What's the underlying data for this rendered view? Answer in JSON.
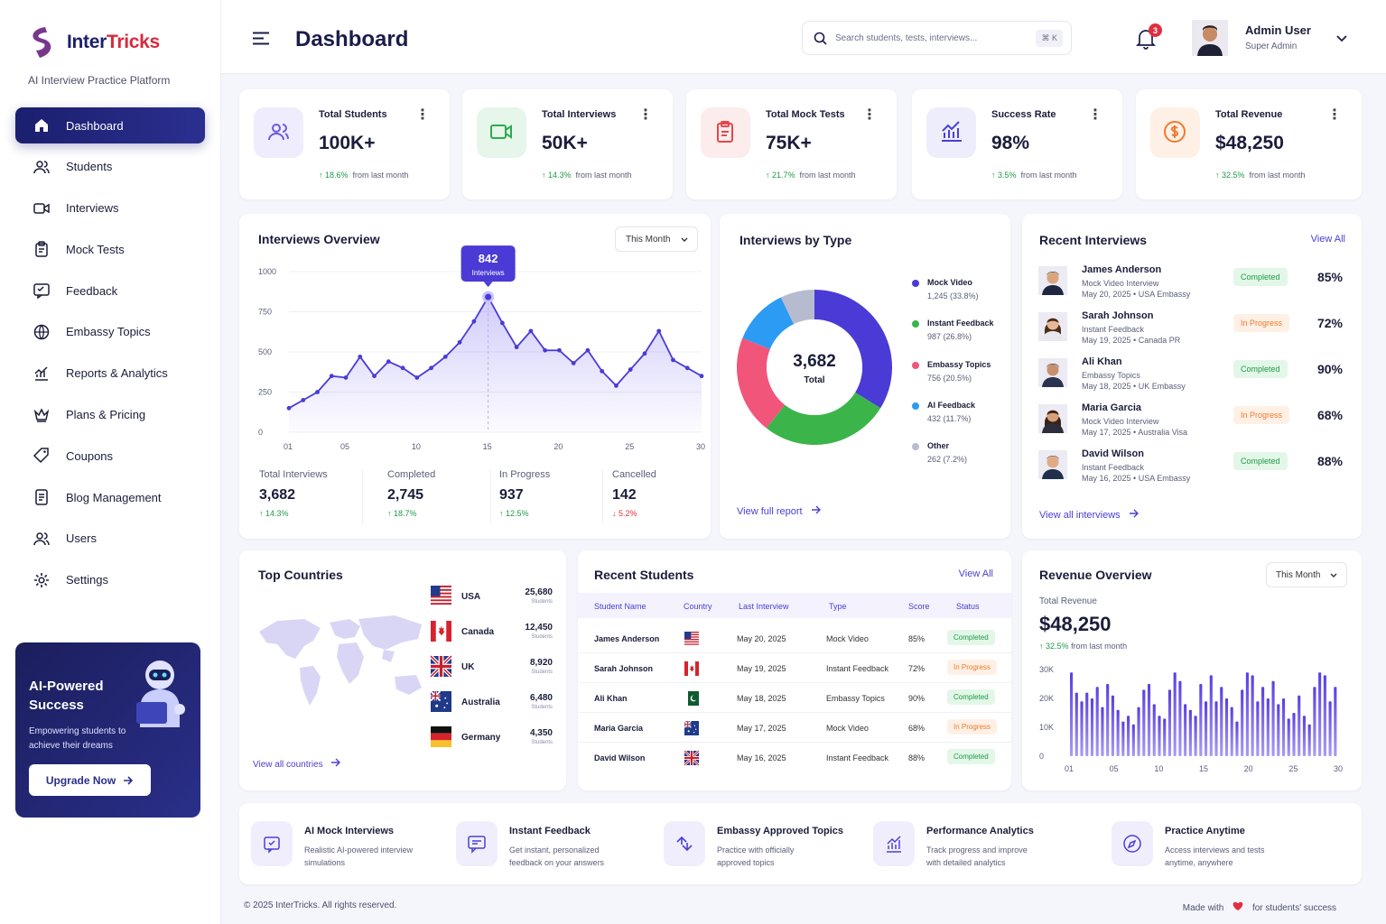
{
  "brand": {
    "name_a": "Inter",
    "name_b": "Tricks",
    "tagline": "AI Interview Practice Platform"
  },
  "nav": [
    {
      "label": "Dashboard",
      "icon": "home-icon"
    },
    {
      "label": "Students",
      "icon": "users-icon"
    },
    {
      "label": "Interviews",
      "icon": "video-icon"
    },
    {
      "label": "Mock Tests",
      "icon": "clipboard-icon"
    },
    {
      "label": "Feedback",
      "icon": "feedback-icon"
    },
    {
      "label": "Embassy Topics",
      "icon": "globe-icon"
    },
    {
      "label": "Reports & Analytics",
      "icon": "chart-icon"
    },
    {
      "label": "Plans & Pricing",
      "icon": "crown-icon"
    },
    {
      "label": "Coupons",
      "icon": "tag-icon"
    },
    {
      "label": "Blog Management",
      "icon": "document-icon"
    },
    {
      "label": "Users",
      "icon": "user-group-icon"
    },
    {
      "label": "Settings",
      "icon": "gear-icon"
    }
  ],
  "promo": {
    "title": "AI-Powered Success",
    "text": "Empowering students to achieve their dreams",
    "button": "Upgrade Now"
  },
  "header": {
    "title": "Dashboard",
    "search_placeholder": "Search students, tests, interviews...",
    "shortcut": "⌘ K",
    "notifications": "3",
    "user_name": "Admin User",
    "user_role": "Super Admin"
  },
  "stats": [
    {
      "label": "Total Students",
      "value": "100K+",
      "change": "18.6%",
      "suffix": "from last month",
      "color": "#6a5ae0",
      "bg": "#efedfd"
    },
    {
      "label": "Total Interviews",
      "value": "50K+",
      "change": "14.3%",
      "suffix": "from last month",
      "color": "#2eaa52",
      "bg": "#e6f6ea"
    },
    {
      "label": "Total Mock Tests",
      "value": "75K+",
      "change": "21.7%",
      "suffix": "from last month",
      "color": "#e5484d",
      "bg": "#fdecec"
    },
    {
      "label": "Success Rate",
      "value": "98%",
      "change": "3.5%",
      "suffix": "from last month",
      "color": "#4a40d4",
      "bg": "#eeedfc"
    },
    {
      "label": "Total Revenue",
      "value": "$48,250",
      "change": "32.5%",
      "suffix": "from last month",
      "color": "#f07a2e",
      "bg": "#fff0e6"
    }
  ],
  "overview": {
    "title": "Interviews Overview",
    "period": "This Month",
    "tooltip_value": "842",
    "tooltip_label": "Interviews",
    "summary": [
      {
        "label": "Total Interviews",
        "value": "3,682",
        "change": "14.3%",
        "dir": "up"
      },
      {
        "label": "Completed",
        "value": "2,745",
        "change": "18.7%",
        "dir": "up"
      },
      {
        "label": "In Progress",
        "value": "937",
        "change": "12.5%",
        "dir": "up"
      },
      {
        "label": "Cancelled",
        "value": "142",
        "change": "5.2%",
        "dir": "down"
      }
    ]
  },
  "by_type": {
    "title": "Interviews by Type",
    "total": "3,682",
    "total_label": "Total",
    "link": "View full report",
    "items": [
      {
        "name": "Mock Video",
        "value": "1,245 (33.8%)",
        "color": "#4a3bd6"
      },
      {
        "name": "Instant Feedback",
        "value": "987 (26.8%)",
        "color": "#3bb54a"
      },
      {
        "name": "Embassy Topics",
        "value": "756 (20.5%)",
        "color": "#f2557a"
      },
      {
        "name": "AI Feedback",
        "value": "432 (11.7%)",
        "color": "#2b9bf4"
      },
      {
        "name": "Other",
        "value": "262 (7.2%)",
        "color": "#b7bbcf"
      }
    ]
  },
  "recent_interviews": {
    "title": "Recent Interviews",
    "view_all": "View All",
    "link": "View all interviews",
    "rows": [
      {
        "name": "James Anderson",
        "type": "Mock Video Interview",
        "date": "May 20, 2025 • USA Embassy",
        "status": "Completed",
        "score": "85%"
      },
      {
        "name": "Sarah Johnson",
        "type": "Instant Feedback",
        "date": "May 19, 2025 • Canada PR",
        "status": "In Progress",
        "score": "72%"
      },
      {
        "name": "Ali Khan",
        "type": "Embassy Topics",
        "date": "May 18, 2025 • UK Embassy",
        "status": "Completed",
        "score": "90%"
      },
      {
        "name": "Maria Garcia",
        "type": "Mock Video Interview",
        "date": "May 17, 2025 • Australia Visa",
        "status": "In Progress",
        "score": "68%"
      },
      {
        "name": "David Wilson",
        "type": "Instant Feedback",
        "date": "May 16, 2025 • USA Embassy",
        "status": "Completed",
        "score": "88%"
      }
    ]
  },
  "countries": {
    "title": "Top Countries",
    "link": "View all countries",
    "sub": "Students",
    "rows": [
      {
        "name": "USA",
        "value": "25,680",
        "flag": "us"
      },
      {
        "name": "Canada",
        "value": "12,450",
        "flag": "ca"
      },
      {
        "name": "UK",
        "value": "8,920",
        "flag": "uk"
      },
      {
        "name": "Australia",
        "value": "6,480",
        "flag": "au"
      },
      {
        "name": "Germany",
        "value": "4,350",
        "flag": "de"
      }
    ]
  },
  "students": {
    "title": "Recent Students",
    "view_all": "View All",
    "headers": [
      "Student Name",
      "Country",
      "Last Interview",
      "Type",
      "Score",
      "Status"
    ],
    "rows": [
      {
        "name": "James Anderson",
        "flag": "us",
        "date": "May 20, 2025",
        "type": "Mock Video",
        "score": "85%",
        "status": "Completed"
      },
      {
        "name": "Sarah Johnson",
        "flag": "ca",
        "date": "May 19, 2025",
        "type": "Instant Feedback",
        "score": "72%",
        "status": "In Progress"
      },
      {
        "name": "Ali Khan",
        "flag": "pk",
        "date": "May 18, 2025",
        "type": "Embassy Topics",
        "score": "90%",
        "status": "Completed"
      },
      {
        "name": "Maria Garcia",
        "flag": "au",
        "date": "May 17, 2025",
        "type": "Mock Video",
        "score": "68%",
        "status": "In Progress"
      },
      {
        "name": "David Wilson",
        "flag": "uk",
        "date": "May 16, 2025",
        "type": "Instant Feedback",
        "score": "88%",
        "status": "Completed"
      }
    ]
  },
  "revenue": {
    "title": "Revenue Overview",
    "period": "This Month",
    "label": "Total Revenue",
    "value": "$48,250",
    "change": "32.5%",
    "suffix": "from last month"
  },
  "features": [
    {
      "title": "AI Mock Interviews",
      "desc": "Realistic AI-powered interview simulations",
      "icon": "robot-chat-icon"
    },
    {
      "title": "Instant Feedback",
      "desc": "Get instant, personalized feedback on your answers",
      "icon": "message-icon"
    },
    {
      "title": "Embassy Approved Topics",
      "desc": "Practice with officially approved topics",
      "icon": "topics-icon"
    },
    {
      "title": "Performance Analytics",
      "desc": "Track progress and improve with detailed analytics",
      "icon": "analytics-icon"
    },
    {
      "title": "Practice Anytime",
      "desc": "Access interviews and tests anytime, anywhere",
      "icon": "compass-icon"
    }
  ],
  "footer": {
    "copyright": "© 2025 InterTricks. All rights reserved.",
    "made_a": "Made with",
    "made_b": "for students' success"
  },
  "chart_data": [
    {
      "type": "area",
      "title": "Interviews Overview",
      "x": [
        1,
        2,
        3,
        4,
        5,
        6,
        7,
        8,
        9,
        10,
        11,
        12,
        13,
        14,
        15,
        16,
        17,
        18,
        19,
        20,
        21,
        22,
        23,
        24,
        25,
        26,
        27,
        28,
        29,
        30
      ],
      "x_ticks": [
        "01",
        "05",
        "10",
        "15",
        "20",
        "25",
        "30"
      ],
      "y_ticks": [
        "0",
        "250",
        "500",
        "750",
        "1000"
      ],
      "ylim": [
        0,
        1000
      ],
      "values": [
        150,
        200,
        250,
        350,
        340,
        470,
        350,
        440,
        400,
        340,
        400,
        470,
        560,
        690,
        842,
        680,
        530,
        630,
        510,
        510,
        430,
        510,
        380,
        290,
        390,
        490,
        630,
        450,
        400,
        350
      ],
      "highlight": {
        "x": 15,
        "value": 842
      },
      "grid": true
    },
    {
      "type": "pie",
      "title": "Interviews by Type",
      "labels": [
        "Mock Video",
        "Instant Feedback",
        "Embassy Topics",
        "AI Feedback",
        "Other"
      ],
      "values": [
        1245,
        987,
        756,
        432,
        262
      ]
    },
    {
      "type": "bar",
      "title": "Revenue Overview",
      "y_ticks": [
        "0",
        "10K",
        "20K",
        "30K"
      ],
      "ylim": [
        0,
        30000
      ],
      "x_ticks": [
        "01",
        "05",
        "10",
        "15",
        "20",
        "25",
        "30"
      ],
      "values": [
        29000,
        22000,
        19000,
        22000,
        20000,
        24000,
        17000,
        25000,
        21000,
        16000,
        12000,
        14000,
        11000,
        17000,
        23000,
        25000,
        18000,
        14000,
        13000,
        23000,
        29000,
        26000,
        18000,
        16000,
        14000,
        25000,
        19000,
        28000,
        19000,
        24000,
        20000,
        17000,
        12000,
        23000,
        29000,
        28000,
        19000,
        24000,
        20000,
        26000,
        18000,
        20000,
        13000,
        15000,
        21000,
        14000,
        11000,
        24000,
        29000,
        28000,
        19000,
        24000
      ]
    }
  ]
}
